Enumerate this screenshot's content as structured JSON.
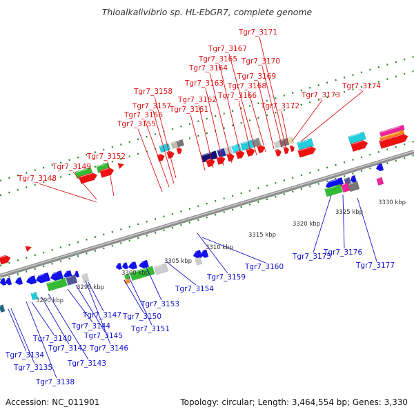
{
  "title": "Thioalkalivibrio sp. HL-EbGR7, complete genome",
  "footer": {
    "accession": "Accession: NC_011901",
    "topology": "Topology: circular; Length: 3,464,554 bp; Genes: 3,330"
  },
  "colors": {
    "top_label": "#dd1111",
    "bottom_label": "#1111cc",
    "backbone": "#9a9a9a",
    "tick_green": "#2a8a2a"
  },
  "scale_labels": [
    "3290 kbp",
    "3295 kbp",
    "3300 kbp",
    "3305 kbp",
    "3310 kbp",
    "3315 kbp",
    "3320 kbp",
    "3325 kbp",
    "3330 kbp"
  ],
  "top_genes": [
    "Tgr7_3148",
    "Tgr7_3149",
    "Tgr7_3152",
    "Tgr7_3155",
    "Tgr7_3156",
    "Tgr7_3157",
    "Tgr7_3158",
    "Tgr7_3161",
    "Tgr7_3162",
    "Tgr7_3163",
    "Tgr7_3164",
    "Tgr7_3165",
    "Tgr7_3166",
    "Tgr7_3167",
    "Tgr7_3168",
    "Tgr7_3169",
    "Tgr7_3170",
    "Tgr7_3171",
    "Tgr7_3172",
    "Tgr7_3173",
    "Tgr7_3174"
  ],
  "bottom_genes": [
    "Tgr7_3134",
    "Tgr7_3135",
    "Tgr7_3138",
    "Tgr7_3140",
    "Tgr7_3142",
    "Tgr7_3143",
    "Tgr7_3144",
    "Tgr7_3145",
    "Tgr7_3146",
    "Tgr7_3147",
    "Tgr7_3150",
    "Tgr7_3151",
    "Tgr7_3153",
    "Tgr7_3154",
    "Tgr7_3159",
    "Tgr7_3160",
    "Tgr7_3175",
    "Tgr7_3176",
    "Tgr7_3177"
  ]
}
